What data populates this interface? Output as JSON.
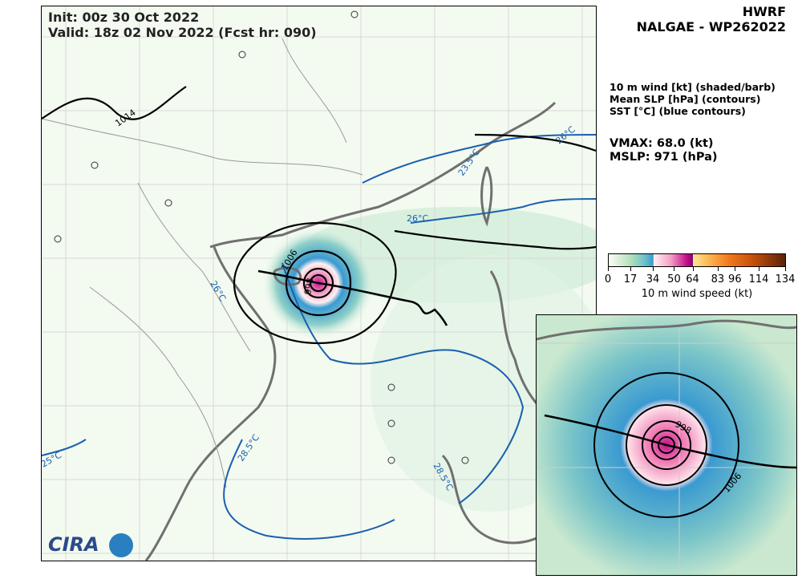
{
  "header": {
    "init": "Init:   00z 30 Oct 2022",
    "valid": "Valid: 18z 02 Nov 2022 (Fcst hr: 090)"
  },
  "title": {
    "model": "HWRF",
    "storm": "NALGAE - WP262022"
  },
  "description": [
    "10 m wind [kt] (shaded/barb)",
    "Mean SLP [hPa] (contours)",
    "SST [°C] (blue contours)"
  ],
  "stats": {
    "vmax": "VMAX:  68.0 (kt)",
    "mslp": "MSLP:  971 (hPa)"
  },
  "colorbar": {
    "label": "10 m wind speed (kt)",
    "min": 0,
    "max": 134,
    "ticks": [
      "0",
      "17",
      "34",
      "50",
      "64",
      "83",
      "96",
      "114",
      "134"
    ]
  },
  "contour_labels": {
    "slp": [
      "1014",
      "1006",
      "998",
      "1006",
      "998"
    ],
    "sst": [
      "26°C",
      "26°C",
      "23.5°C",
      "26°C",
      "28.5°C",
      "28.5°C",
      "25°C"
    ]
  },
  "logo": {
    "text": "CIRA"
  },
  "colors": {
    "land_bg": "#eef7ea",
    "sst_contour": "#1a5fb0",
    "slp_contour": "#000000",
    "coast": "#707070"
  }
}
